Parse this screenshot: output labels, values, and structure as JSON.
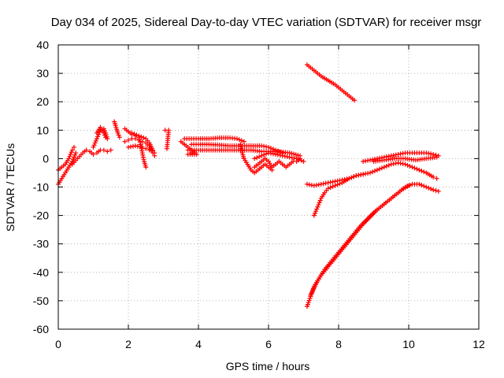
{
  "chart_data": {
    "type": "scatter",
    "title": "Day 034 of 2025, Sidereal Day-to-day VTEC variation (SDTVAR) for receiver msgr",
    "xlabel": "GPS time / hours",
    "ylabel": "SDTVAR / TECUs",
    "xlim": [
      0,
      12
    ],
    "ylim": [
      -60,
      40
    ],
    "xticks": [
      "0",
      "2",
      "4",
      "6",
      "8",
      "10",
      "12"
    ],
    "yticks": [
      "-60",
      "-50",
      "-40",
      "-30",
      "-20",
      "-10",
      "0",
      "10",
      "20",
      "30",
      "40"
    ],
    "grid": true,
    "marker": "plus",
    "color": "#ff0000",
    "series": [
      {
        "values": [
          [
            0.0,
            -9
          ],
          [
            0.1,
            -7
          ],
          [
            0.2,
            -5
          ],
          [
            0.3,
            -3
          ],
          [
            0.4,
            -1
          ],
          [
            0.5,
            2
          ]
        ]
      },
      {
        "values": [
          [
            0.0,
            -4
          ],
          [
            0.1,
            -3
          ],
          [
            0.2,
            -2
          ],
          [
            0.3,
            0
          ],
          [
            0.4,
            3
          ],
          [
            0.45,
            4
          ]
        ]
      },
      {
        "values": [
          [
            0.4,
            -2
          ],
          [
            0.55,
            0
          ],
          [
            0.7,
            2
          ],
          [
            0.8,
            3
          ],
          [
            0.9,
            2.5
          ],
          [
            1.0,
            1.5
          ],
          [
            1.1,
            2
          ],
          [
            1.2,
            3
          ],
          [
            1.3,
            3
          ],
          [
            1.4,
            2.5
          ],
          [
            1.5,
            3
          ]
        ]
      },
      {
        "values": [
          [
            1.0,
            4
          ],
          [
            1.1,
            7
          ],
          [
            1.2,
            10
          ],
          [
            1.3,
            10.5
          ],
          [
            1.35,
            9
          ],
          [
            1.4,
            7
          ]
        ]
      },
      {
        "values": [
          [
            1.1,
            9
          ],
          [
            1.2,
            11
          ],
          [
            1.3,
            9
          ],
          [
            1.35,
            7.5
          ]
        ]
      },
      {
        "values": [
          [
            1.6,
            13
          ],
          [
            1.65,
            11
          ],
          [
            1.7,
            9
          ],
          [
            1.75,
            7.5
          ]
        ]
      },
      {
        "values": [
          [
            1.9,
            10.5
          ],
          [
            2.0,
            9.5
          ],
          [
            2.1,
            8.5
          ],
          [
            2.2,
            8
          ],
          [
            2.3,
            7.5
          ],
          [
            2.35,
            5
          ],
          [
            2.4,
            2
          ],
          [
            2.45,
            -1
          ],
          [
            2.5,
            -3
          ]
        ]
      },
      {
        "values": [
          [
            1.9,
            6
          ],
          [
            2.0,
            6.5
          ],
          [
            2.1,
            7
          ],
          [
            2.2,
            7
          ],
          [
            2.3,
            6.5
          ],
          [
            2.4,
            6
          ],
          [
            2.5,
            5.5
          ],
          [
            2.6,
            4
          ],
          [
            2.7,
            2
          ],
          [
            2.75,
            1
          ]
        ]
      },
      {
        "values": [
          [
            2.0,
            4
          ],
          [
            2.2,
            4.5
          ],
          [
            2.4,
            4
          ],
          [
            2.5,
            3.5
          ],
          [
            2.6,
            3
          ]
        ]
      },
      {
        "values": [
          [
            2.1,
            9
          ],
          [
            2.3,
            8
          ],
          [
            2.5,
            7
          ],
          [
            2.6,
            5.5
          ],
          [
            2.7,
            3
          ],
          [
            2.75,
            2
          ]
        ]
      },
      {
        "values": [
          [
            3.05,
            10
          ],
          [
            3.15,
            10
          ],
          [
            3.1,
            3.5
          ]
        ]
      },
      {
        "values": [
          [
            3.5,
            6
          ],
          [
            3.6,
            5
          ],
          [
            3.7,
            4
          ],
          [
            3.8,
            3
          ],
          [
            3.9,
            2
          ],
          [
            3.95,
            1.5
          ],
          [
            3.7,
            1.5
          ],
          [
            3.8,
            2
          ]
        ]
      },
      {
        "values": [
          [
            3.6,
            7
          ],
          [
            3.8,
            7
          ],
          [
            4.0,
            7
          ],
          [
            4.3,
            7
          ],
          [
            4.6,
            7.3
          ],
          [
            4.9,
            7.3
          ],
          [
            5.1,
            7
          ],
          [
            5.3,
            6
          ]
        ]
      },
      {
        "values": [
          [
            3.8,
            5
          ],
          [
            4.0,
            5
          ],
          [
            4.3,
            5
          ],
          [
            4.6,
            4.8
          ],
          [
            4.9,
            4.5
          ],
          [
            5.2,
            4.5
          ],
          [
            5.5,
            4.5
          ],
          [
            5.8,
            4.5
          ],
          [
            6.0,
            4
          ],
          [
            6.2,
            3
          ],
          [
            6.4,
            2
          ]
        ]
      },
      {
        "values": [
          [
            3.7,
            3
          ],
          [
            4.0,
            3
          ],
          [
            4.3,
            3
          ],
          [
            4.6,
            3
          ],
          [
            4.9,
            3
          ],
          [
            5.2,
            3
          ],
          [
            5.5,
            3
          ],
          [
            5.8,
            2.5
          ],
          [
            6.0,
            2.5
          ],
          [
            6.3,
            2.5
          ],
          [
            6.6,
            2
          ],
          [
            6.9,
            1
          ]
        ]
      },
      {
        "values": [
          [
            5.2,
            5
          ],
          [
            5.25,
            2
          ],
          [
            5.3,
            0
          ],
          [
            5.4,
            -2
          ],
          [
            5.5,
            -4
          ],
          [
            5.6,
            -5
          ],
          [
            5.7,
            -4
          ],
          [
            5.8,
            -3
          ],
          [
            5.9,
            -2
          ],
          [
            6.0,
            -3
          ],
          [
            6.1,
            -4
          ]
        ]
      },
      {
        "values": [
          [
            5.6,
            -3
          ],
          [
            5.7,
            -2
          ],
          [
            5.8,
            -1
          ],
          [
            5.9,
            0
          ],
          [
            6.0,
            -1
          ],
          [
            6.1,
            -3
          ],
          [
            6.2,
            -2
          ],
          [
            6.3,
            -1
          ],
          [
            6.4,
            -2
          ],
          [
            6.5,
            -3
          ],
          [
            6.6,
            -2
          ],
          [
            6.7,
            -1
          ],
          [
            6.8,
            -1
          ],
          [
            6.9,
            0
          ]
        ]
      },
      {
        "values": [
          [
            5.6,
            0
          ],
          [
            5.8,
            1
          ],
          [
            6.0,
            2
          ],
          [
            6.2,
            1.5
          ],
          [
            6.4,
            1
          ],
          [
            6.6,
            0.5
          ],
          [
            6.8,
            0
          ],
          [
            7.0,
            -1
          ]
        ]
      },
      {
        "values": [
          [
            7.1,
            33
          ],
          [
            7.3,
            31
          ],
          [
            7.5,
            29
          ],
          [
            7.7,
            27.5
          ],
          [
            7.9,
            26
          ],
          [
            8.1,
            24
          ],
          [
            8.3,
            22
          ],
          [
            8.45,
            20.5
          ]
        ]
      },
      {
        "values": [
          [
            7.1,
            -9
          ],
          [
            7.3,
            -9.5
          ],
          [
            7.5,
            -9
          ],
          [
            7.7,
            -8.5
          ],
          [
            7.9,
            -8
          ],
          [
            8.1,
            -7.5
          ],
          [
            8.3,
            -7
          ],
          [
            8.5,
            -6
          ],
          [
            8.7,
            -5.5
          ],
          [
            8.9,
            -5
          ],
          [
            9.1,
            -4
          ],
          [
            9.3,
            -3
          ],
          [
            9.5,
            -2
          ],
          [
            9.7,
            -1.5
          ],
          [
            9.9,
            -2
          ],
          [
            10.1,
            -3
          ],
          [
            10.3,
            -4
          ],
          [
            10.5,
            -5
          ],
          [
            10.7,
            -6.5
          ],
          [
            10.8,
            -7
          ]
        ]
      },
      {
        "values": [
          [
            7.3,
            -20
          ],
          [
            7.4,
            -17
          ],
          [
            7.5,
            -14
          ],
          [
            7.6,
            -12
          ],
          [
            7.7,
            -10.5
          ],
          [
            7.9,
            -9.5
          ],
          [
            8.1,
            -8.5
          ],
          [
            8.3,
            -7
          ],
          [
            8.5,
            -6
          ],
          [
            8.7,
            -5.5
          ]
        ]
      },
      {
        "values": [
          [
            8.7,
            -1
          ],
          [
            8.9,
            -0.5
          ],
          [
            9.1,
            0
          ],
          [
            9.3,
            0.5
          ],
          [
            9.5,
            1
          ],
          [
            9.7,
            1.5
          ],
          [
            9.9,
            2
          ],
          [
            10.1,
            2
          ],
          [
            10.3,
            2
          ],
          [
            10.5,
            2
          ],
          [
            10.7,
            1.5
          ],
          [
            10.85,
            1
          ]
        ]
      },
      {
        "values": [
          [
            9.0,
            -1
          ],
          [
            9.3,
            -0.5
          ],
          [
            9.6,
            0
          ],
          [
            9.9,
            0
          ],
          [
            10.2,
            -0.5
          ],
          [
            10.5,
            0
          ],
          [
            10.8,
            0.5
          ]
        ]
      },
      {
        "values": [
          [
            7.1,
            -52
          ],
          [
            7.3,
            -45
          ],
          [
            7.5,
            -41
          ],
          [
            7.7,
            -38
          ],
          [
            7.9,
            -35
          ],
          [
            8.1,
            -32
          ],
          [
            8.3,
            -29
          ],
          [
            8.5,
            -26
          ],
          [
            8.7,
            -23
          ],
          [
            8.9,
            -20.5
          ],
          [
            9.1,
            -18
          ],
          [
            9.3,
            -16
          ],
          [
            9.5,
            -14
          ],
          [
            9.7,
            -12
          ],
          [
            9.9,
            -10
          ],
          [
            10.1,
            -9
          ],
          [
            10.3,
            -9
          ],
          [
            10.5,
            -10
          ],
          [
            10.7,
            -11
          ],
          [
            10.85,
            -11.5
          ]
        ]
      },
      {
        "values": [
          [
            7.2,
            -48
          ],
          [
            7.4,
            -43
          ],
          [
            7.6,
            -39
          ],
          [
            7.8,
            -36
          ],
          [
            8.0,
            -33
          ],
          [
            8.2,
            -30
          ],
          [
            8.4,
            -27
          ],
          [
            8.6,
            -24
          ],
          [
            8.8,
            -21.5
          ],
          [
            9.0,
            -19
          ],
          [
            9.2,
            -17
          ],
          [
            9.4,
            -15
          ],
          [
            9.6,
            -13
          ],
          [
            9.8,
            -11
          ],
          [
            10.0,
            -9.5
          ]
        ]
      }
    ]
  }
}
